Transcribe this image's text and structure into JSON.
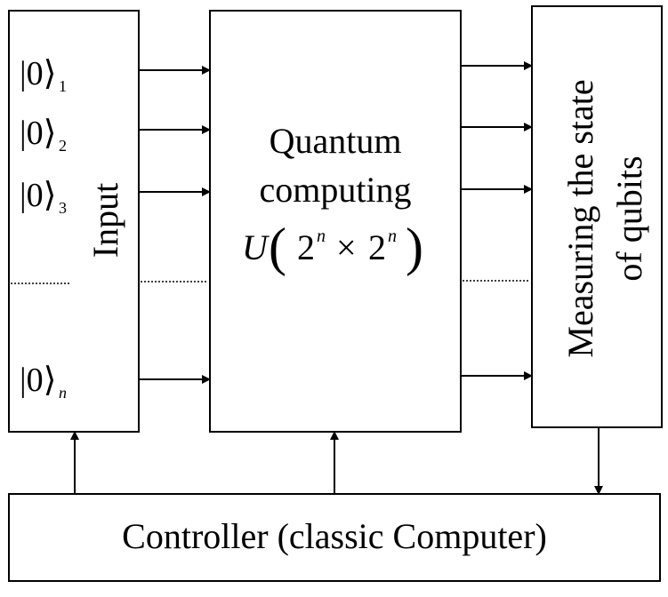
{
  "input_block": {
    "label": "Input",
    "qubits": [
      {
        "ket": "|0⟩",
        "index": "1"
      },
      {
        "ket": "|0⟩",
        "index": "2"
      },
      {
        "ket": "|0⟩",
        "index": "3"
      },
      {
        "ket": "|0⟩",
        "index": "n"
      }
    ]
  },
  "quantum_block": {
    "line1": "Quantum",
    "line2": "computing",
    "formula": {
      "symbol": "U",
      "base": "2",
      "exponent": "n",
      "times": "×"
    }
  },
  "measure_block": {
    "line1": "Measuring the state",
    "line2": "of qubits"
  },
  "controller": {
    "label": "Controller (classic Computer)"
  }
}
